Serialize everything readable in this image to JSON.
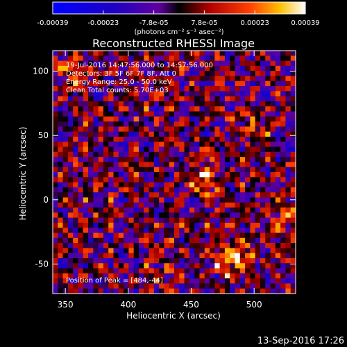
{
  "chart_data": {
    "type": "heatmap",
    "title": "Reconstructed RHESSI Image",
    "xlabel": "Heliocentric X (arcsec)",
    "ylabel": "Heliocentric Y (arcsec)",
    "xlim": [
      340,
      533
    ],
    "ylim": [
      -73,
      116
    ],
    "xticks": [
      "350",
      "400",
      "450",
      "500"
    ],
    "yticks": [
      "100",
      "50",
      "0",
      "-50"
    ],
    "colorbar": {
      "ticks": [
        "-0.00039",
        "-0.00023",
        "-7.8e-05",
        "7.8e-05",
        "0.00023",
        "0.00039"
      ],
      "units": "(photons cm⁻² s⁻¹ asec⁻²)",
      "min": -0.00039,
      "max": 0.00039
    },
    "annotations": [
      "19-Jul-2016 14:47:56.000 to 14:57:56.000",
      "Detectors: 3F 5F 6F 7F 8F, Att 0",
      "Energy Range: 25.0 - 50.0 keV",
      "Clean    Total counts: 5.70E+03"
    ],
    "peak_label": "Position of Peak = [484,-44]",
    "peak": [
      484,
      -44
    ],
    "sources": [
      {
        "x": 484,
        "y": -44,
        "strength": 1.0
      },
      {
        "x": 461,
        "y": 17,
        "strength": 0.55
      },
      {
        "x": 527,
        "y": -10,
        "strength": 0.5
      },
      {
        "x": 358,
        "y": 98,
        "strength": 0.45
      },
      {
        "x": 428,
        "y": -55,
        "strength": 0.35
      },
      {
        "x": 500,
        "y": 55,
        "strength": 0.35
      }
    ]
  },
  "footer": {
    "date": "13-Sep-2016 17:26"
  },
  "colors": {
    "background": "#000000",
    "axes": "#ffffff"
  }
}
